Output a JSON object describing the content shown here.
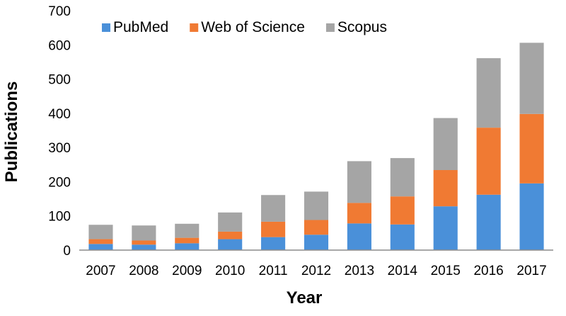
{
  "chart_data": {
    "type": "bar",
    "stacked": true,
    "title": "",
    "xlabel": "Year",
    "ylabel": "Publications",
    "ylim": [
      0,
      700
    ],
    "yticks": [
      0,
      100,
      200,
      300,
      400,
      500,
      600,
      700
    ],
    "grid": false,
    "legend": "top-left",
    "categories": [
      "2007",
      "2008",
      "2009",
      "2010",
      "2011",
      "2012",
      "2013",
      "2014",
      "2015",
      "2016",
      "2017"
    ],
    "series": [
      {
        "name": "PubMed",
        "color": "#4a90d9",
        "values": [
          18,
          16,
          20,
          32,
          38,
          45,
          78,
          75,
          128,
          162,
          195
        ]
      },
      {
        "name": "Web of Science",
        "color": "#f07a33",
        "values": [
          14,
          12,
          16,
          22,
          45,
          43,
          60,
          82,
          106,
          196,
          203
        ]
      },
      {
        "name": "Scopus",
        "color": "#a5a5a5",
        "values": [
          42,
          44,
          41,
          56,
          78,
          83,
          122,
          112,
          152,
          203,
          208
        ]
      }
    ]
  }
}
